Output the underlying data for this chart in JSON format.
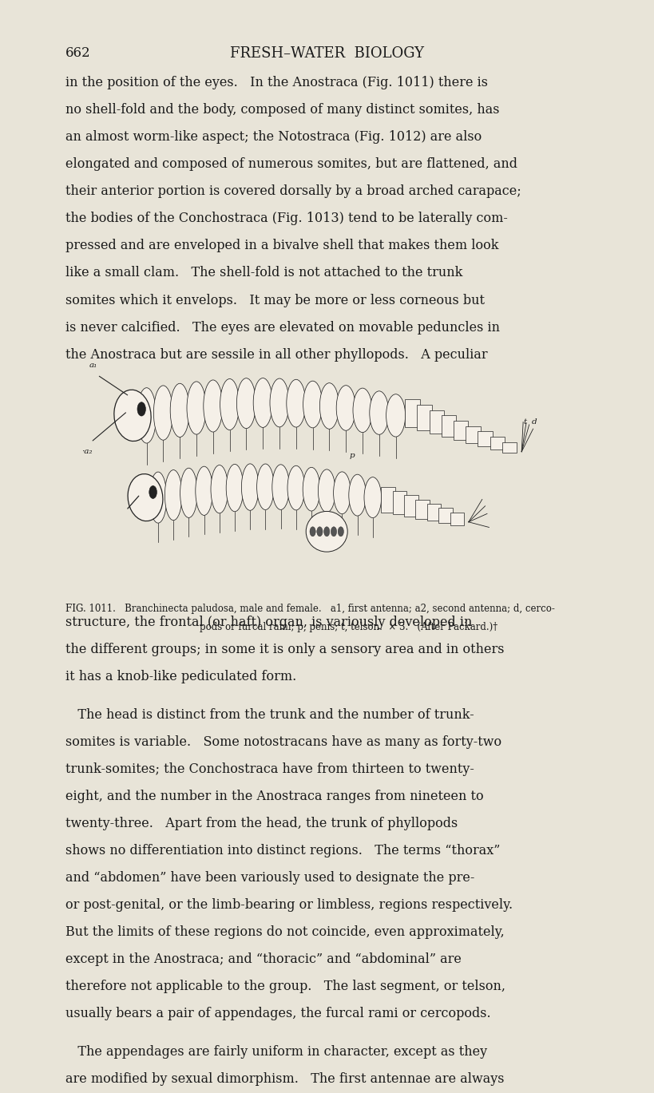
{
  "background_color": "#e8e4d8",
  "page_number": "662",
  "header": "FRESH–WATER  BIOLOGY",
  "header_fontsize": 13,
  "page_num_fontsize": 12,
  "body_fontsize": 11.5,
  "text_color": "#1a1a1a",
  "paragraph1": "in the position of the eyes.   In the Anostraca (Fig. 1011) there is\nno shell-fold and the body, composed of many distinct somites, has\nan almost worm-like aspect; the Notostraca (Fig. 1012) are also\nelongated and composed of numerous somites, but are flattened, and\ntheir anterior portion is covered dorsally by a broad arched carapace;\nthe bodies of the Conchostraca (Fig. 1013) tend to be laterally com-\npressed and are enveloped in a bivalve shell that makes them look\nlike a small clam.   The shell-fold is not attached to the trunk\nsomites which it envelops.   It may be more or less corneous but\nis never calcified.   The eyes are elevated on movable peduncles in\nthe Anostraca but are sessile in all other phyllopods.   A peculiar",
  "fig_caption_line1": "FIG. 1011.   Branchinecta paludosa, male and female.   a1, first antenna; a2, second antenna; d, cerco-",
  "fig_caption_line2": "pods or furcal rami; p, penis; t, telson.  × 3.   (After Packard.)†",
  "paragraph2": "structure, the frontal (or haft) organ, is variously developed in\nthe different groups; in some it is only a sensory area and in others\nit has a knob-like pediculated form.",
  "paragraph3": "   The head is distinct from the trunk and the number of trunk-\nsomites is variable.   Some notostracans have as many as forty-two\ntrunk-somites; the Conchostraca have from thirteen to twenty-\neight, and the number in the Anostraca ranges from nineteen to\ntwenty-three.   Apart from the head, the trunk of phyllopods\nshows no differentiation into distinct regions.   The terms “thorax”\nand “abdomen” have been variously used to designate the pre-\nor post-genital, or the limb-bearing or limbless, regions respectively.\nBut the limits of these regions do not coincide, even approximately,\nexcept in the Anostraca; and “thoracic” and “abdominal” are\ntherefore not applicable to the group.   The last segment, or telson,\nusually bears a pair of appendages, the furcal rami or cercopods.",
  "paragraph4": "   The appendages are fairly uniform in character, except as they\nare modified by sexual dimorphism.   The first antennae are always"
}
